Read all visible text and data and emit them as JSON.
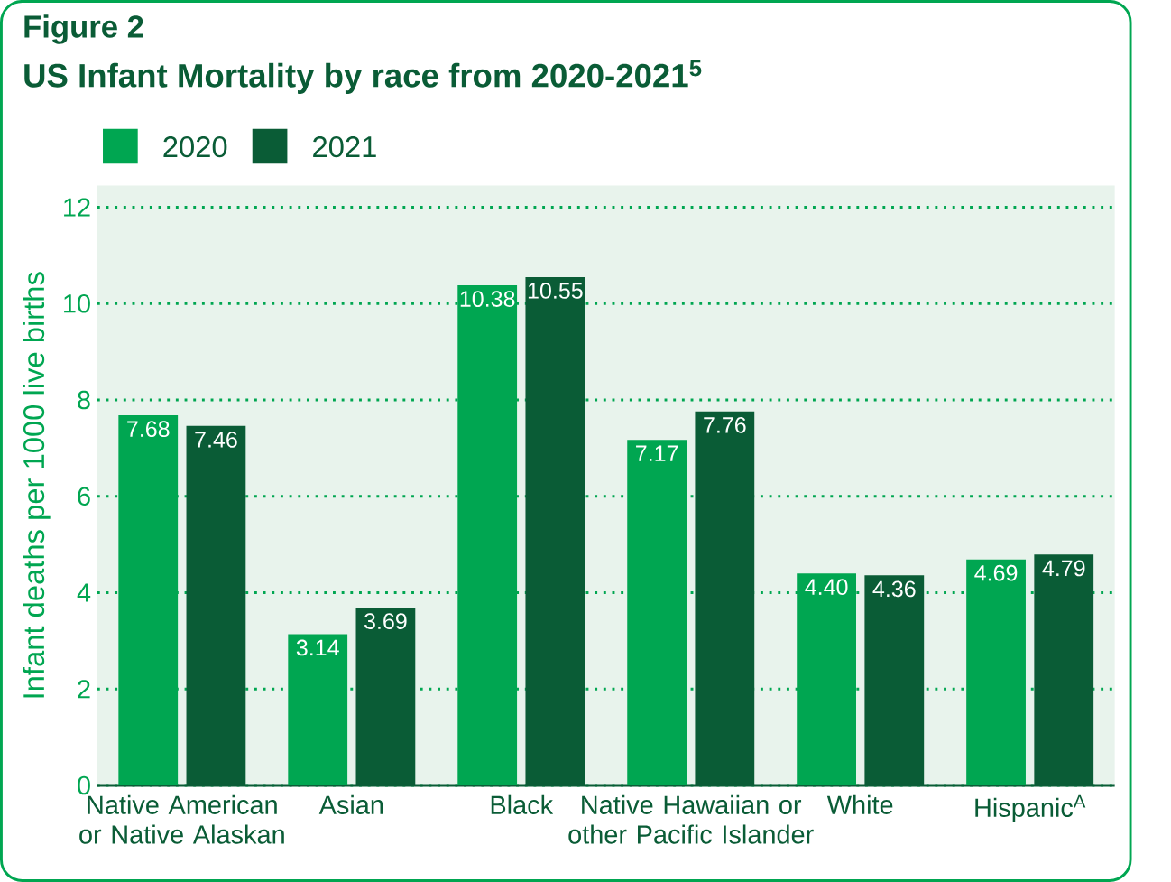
{
  "chart_data": {
    "type": "bar",
    "title": "Figure 2",
    "subtitle": "US Infant Mortality by race from 2020-2021$^{5}$",
    "ylabel": "Infant deaths per 1000 live births",
    "categories": [
      "Native American or Native Alaskan",
      "Asian",
      "Black",
      "Native Hawaiian or other Pacific Islander",
      "White",
      "Hispanic$^{A}$"
    ],
    "series": [
      {
        "name": "2020",
        "color": "#00a651",
        "values": [
          7.68,
          3.14,
          10.38,
          7.17,
          4.4,
          4.69
        ],
        "value_labels": [
          "7.68",
          "3.14",
          "10.38",
          "7.17",
          "4.40",
          "4.69"
        ]
      },
      {
        "name": "2021",
        "color": "#0a5c36",
        "values": [
          7.46,
          3.69,
          10.55,
          7.76,
          4.36,
          4.79
        ],
        "value_labels": [
          "7.46",
          "3.69",
          "10.55",
          "7.76",
          "4.36",
          "4.79"
        ]
      }
    ],
    "ylim": [
      0,
      12.45
    ],
    "yticks": [
      0,
      2,
      4,
      6,
      8,
      10,
      12
    ],
    "grid": "y",
    "legend": "top left"
  }
}
